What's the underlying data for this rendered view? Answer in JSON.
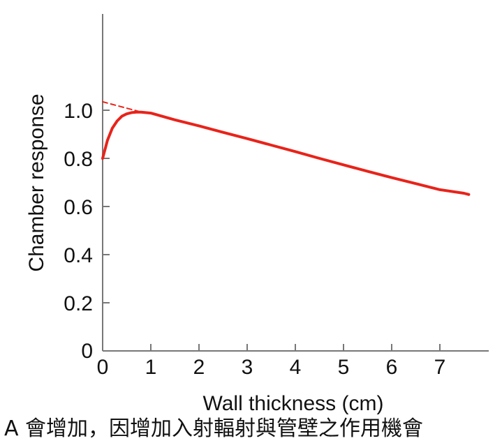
{
  "chart_data": {
    "type": "line",
    "xlabel": "Wall thickness (cm)",
    "ylabel": "Chamber response",
    "xlim": [
      0,
      8
    ],
    "ylim": [
      0,
      1.2
    ],
    "x_ticks": [
      "0",
      "1",
      "2",
      "3",
      "4",
      "5",
      "6",
      "7"
    ],
    "y_ticks": [
      "0",
      "0.2",
      "0.4",
      "0.6",
      "0.8",
      "1.0"
    ],
    "series": [
      {
        "color": "#e8231a",
        "style": "solid",
        "x": [
          0,
          0.1,
          0.2,
          0.3,
          0.4,
          0.5,
          0.6,
          0.7,
          0.8,
          1.0,
          1.5,
          2,
          2.5,
          3,
          3.5,
          4,
          4.5,
          5,
          5.5,
          6,
          6.5,
          7,
          7.5,
          7.6
        ],
        "y": [
          0.8,
          0.875,
          0.925,
          0.955,
          0.975,
          0.985,
          0.99,
          0.992,
          0.992,
          0.988,
          0.96,
          0.935,
          0.908,
          0.882,
          0.855,
          0.828,
          0.8,
          0.773,
          0.746,
          0.72,
          0.695,
          0.67,
          0.655,
          0.65
        ]
      },
      {
        "color": "#e8231a",
        "style": "dashed",
        "x": [
          0,
          0.75
        ],
        "y": [
          1.035,
          0.995
        ]
      }
    ]
  },
  "caption": "A 會增加，因增加入射輻射與管壁之作用機會"
}
